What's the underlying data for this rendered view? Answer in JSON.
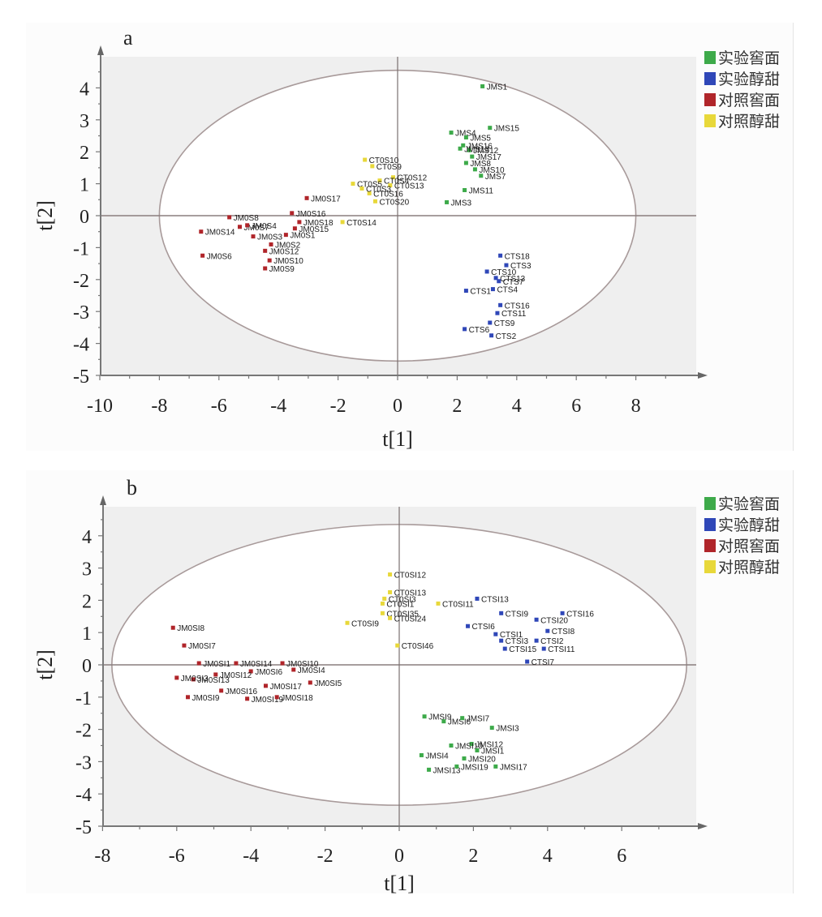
{
  "chart_data": [
    {
      "type": "scatter",
      "panel_label": "a",
      "xlabel": "t[1]",
      "ylabel": "t[2]",
      "xlim": [
        -10,
        10
      ],
      "ylim": [
        -5,
        5
      ],
      "xticks": [
        "-10",
        "-8",
        "-6",
        "-4",
        "-2",
        "0",
        "2",
        "4",
        "6",
        "8"
      ],
      "xtick_values": [
        -10,
        -8,
        -6,
        -4,
        -2,
        0,
        2,
        4,
        6,
        8
      ],
      "yticks": [
        "4",
        "3",
        "2",
        "1",
        "0",
        "-1",
        "-2",
        "-3",
        "-4",
        "-5"
      ],
      "ytick_values": [
        4,
        3,
        2,
        1,
        0,
        -1,
        -2,
        -3,
        -4,
        -5
      ],
      "grid": false,
      "ellipse": {
        "cx": 0,
        "cy": 0,
        "rx": 8.0,
        "ry": 4.55
      },
      "legend_position": "right",
      "legend": [
        {
          "label": "实验窖面",
          "color": "#3daa4a"
        },
        {
          "label": "实验醇甜",
          "color": "#2f47b8"
        },
        {
          "label": "对照窖面",
          "color": "#b0252a"
        },
        {
          "label": "对照醇甜",
          "color": "#e8d83a"
        }
      ],
      "series": [
        {
          "name": "实验窖面",
          "color": "#3daa4a",
          "points": [
            {
              "label": "JMS1",
              "x": 2.85,
              "y": 4.05
            },
            {
              "label": "JMS15",
              "x": 3.1,
              "y": 2.75
            },
            {
              "label": "JMS4",
              "x": 1.8,
              "y": 2.6
            },
            {
              "label": "JMS5",
              "x": 2.3,
              "y": 2.45
            },
            {
              "label": "JMS16",
              "x": 2.2,
              "y": 2.2
            },
            {
              "label": "JMS12",
              "x": 2.4,
              "y": 2.05
            },
            {
              "label": "JMS17",
              "x": 2.5,
              "y": 1.85
            },
            {
              "label": "JMS13",
              "x": 2.1,
              "y": 2.1
            },
            {
              "label": "JMS8",
              "x": 2.3,
              "y": 1.65
            },
            {
              "label": "JMS10",
              "x": 2.6,
              "y": 1.45
            },
            {
              "label": "JMS7",
              "x": 2.8,
              "y": 1.25
            },
            {
              "label": "JMS11",
              "x": 2.25,
              "y": 0.8
            },
            {
              "label": "JMS3",
              "x": 1.65,
              "y": 0.42
            }
          ]
        },
        {
          "name": "实验醇甜",
          "color": "#2f47b8",
          "points": [
            {
              "label": "CTS18",
              "x": 3.45,
              "y": -1.25
            },
            {
              "label": "CTS3",
              "x": 3.65,
              "y": -1.55
            },
            {
              "label": "CTS10",
              "x": 3.0,
              "y": -1.75
            },
            {
              "label": "CTS13",
              "x": 3.3,
              "y": -1.95
            },
            {
              "label": "CTS7",
              "x": 3.4,
              "y": -2.05
            },
            {
              "label": "CTS4",
              "x": 3.2,
              "y": -2.3
            },
            {
              "label": "CTS1",
              "x": 2.3,
              "y": -2.35
            },
            {
              "label": "CTS16",
              "x": 3.45,
              "y": -2.8
            },
            {
              "label": "CTS11",
              "x": 3.35,
              "y": -3.05
            },
            {
              "label": "CTS9",
              "x": 3.1,
              "y": -3.35
            },
            {
              "label": "CTS6",
              "x": 2.25,
              "y": -3.55
            },
            {
              "label": "CTS2",
              "x": 3.15,
              "y": -3.75
            }
          ]
        },
        {
          "name": "对照窖面",
          "color": "#b0252a",
          "points": [
            {
              "label": "JM0S17",
              "x": -3.05,
              "y": 0.55
            },
            {
              "label": "JM0S16",
              "x": -3.55,
              "y": 0.08
            },
            {
              "label": "JM0S8",
              "x": -5.65,
              "y": -0.05
            },
            {
              "label": "JM0S18",
              "x": -3.3,
              "y": -0.2
            },
            {
              "label": "JM0S15",
              "x": -3.45,
              "y": -0.4
            },
            {
              "label": "JM0S7",
              "x": -5.3,
              "y": -0.35
            },
            {
              "label": "JM0S4",
              "x": -5.05,
              "y": -0.3
            },
            {
              "label": "JM0S14",
              "x": -6.6,
              "y": -0.5
            },
            {
              "label": "JM0S1",
              "x": -3.75,
              "y": -0.6
            },
            {
              "label": "JM0S3",
              "x": -4.85,
              "y": -0.65
            },
            {
              "label": "JM0S2",
              "x": -4.25,
              "y": -0.9
            },
            {
              "label": "JM0S12",
              "x": -4.45,
              "y": -1.1
            },
            {
              "label": "JM0S10",
              "x": -4.3,
              "y": -1.4
            },
            {
              "label": "JM0S9",
              "x": -4.45,
              "y": -1.65
            },
            {
              "label": "JM0S6",
              "x": -6.55,
              "y": -1.25
            }
          ]
        },
        {
          "name": "对照醇甜",
          "color": "#e8d83a",
          "points": [
            {
              "label": "CT0S10",
              "x": -1.1,
              "y": 1.75
            },
            {
              "label": "CT0S9",
              "x": -0.85,
              "y": 1.55
            },
            {
              "label": "CT0S12",
              "x": -0.15,
              "y": 1.2
            },
            {
              "label": "CT0S4",
              "x": -0.6,
              "y": 1.1
            },
            {
              "label": "CT0S13",
              "x": -0.25,
              "y": 0.95
            },
            {
              "label": "CT0S5",
              "x": -1.5,
              "y": 1.0
            },
            {
              "label": "CT0S16",
              "x": -0.95,
              "y": 0.7
            },
            {
              "label": "CT0S3",
              "x": -1.2,
              "y": 0.85
            },
            {
              "label": "CT0S20",
              "x": -0.75,
              "y": 0.45
            },
            {
              "label": "CT0S14",
              "x": -1.85,
              "y": -0.2
            }
          ]
        }
      ]
    },
    {
      "type": "scatter",
      "panel_label": "b",
      "xlabel": "t[1]",
      "ylabel": "t[2]",
      "xlim": [
        -8,
        8
      ],
      "ylim": [
        -5,
        5
      ],
      "xticks": [
        "-8",
        "-6",
        "-4",
        "-2",
        "0",
        "2",
        "4",
        "6"
      ],
      "xtick_values": [
        -8,
        -6,
        -4,
        -2,
        0,
        2,
        4,
        6
      ],
      "yticks": [
        "4",
        "3",
        "2",
        "1",
        "0",
        "-1",
        "-2",
        "-3",
        "-4",
        "-5"
      ],
      "ytick_values": [
        4,
        3,
        2,
        1,
        0,
        -1,
        -2,
        -3,
        -4,
        -5
      ],
      "grid": false,
      "ellipse": {
        "cx": 0,
        "cy": 0,
        "rx": 7.75,
        "ry": 4.35
      },
      "legend_position": "right",
      "legend": [
        {
          "label": "实验窖面",
          "color": "#3daa4a"
        },
        {
          "label": "实验醇甜",
          "color": "#2f47b8"
        },
        {
          "label": "对照窖面",
          "color": "#b0252a"
        },
        {
          "label": "对照醇甜",
          "color": "#e8d83a"
        }
      ],
      "series": [
        {
          "name": "实验窖面",
          "color": "#3daa4a",
          "points": [
            {
              "label": "JMSI9",
              "x": 0.68,
              "y": -1.6
            },
            {
              "label": "JMSI6",
              "x": 1.2,
              "y": -1.75
            },
            {
              "label": "JMSI7",
              "x": 1.7,
              "y": -1.65
            },
            {
              "label": "JMSI3",
              "x": 2.5,
              "y": -1.95
            },
            {
              "label": "JMSI12",
              "x": 1.95,
              "y": -2.45
            },
            {
              "label": "JMSI10",
              "x": 1.4,
              "y": -2.5
            },
            {
              "label": "JMSI1",
              "x": 2.1,
              "y": -2.65
            },
            {
              "label": "JMSI4",
              "x": 0.6,
              "y": -2.8
            },
            {
              "label": "JMSI20",
              "x": 1.75,
              "y": -2.9
            },
            {
              "label": "JMSI13",
              "x": 0.8,
              "y": -3.25
            },
            {
              "label": "JMSI19",
              "x": 1.55,
              "y": -3.15
            },
            {
              "label": "JMSI17",
              "x": 2.6,
              "y": -3.15
            }
          ]
        },
        {
          "name": "实验醇甜",
          "color": "#2f47b8",
          "points": [
            {
              "label": "CTSI13",
              "x": 2.1,
              "y": 2.05
            },
            {
              "label": "CTSI16",
              "x": 4.4,
              "y": 1.6
            },
            {
              "label": "CTSI9",
              "x": 2.75,
              "y": 1.6
            },
            {
              "label": "CTSI20",
              "x": 3.7,
              "y": 1.4
            },
            {
              "label": "CTSI6",
              "x": 1.85,
              "y": 1.2
            },
            {
              "label": "CTSI8",
              "x": 4.0,
              "y": 1.05
            },
            {
              "label": "CTSI1",
              "x": 2.6,
              "y": 0.95
            },
            {
              "label": "CTSI2",
              "x": 3.7,
              "y": 0.75
            },
            {
              "label": "CTSI3",
              "x": 2.75,
              "y": 0.75
            },
            {
              "label": "CTSI15",
              "x": 2.85,
              "y": 0.5
            },
            {
              "label": "CTSI11",
              "x": 3.9,
              "y": 0.5
            },
            {
              "label": "CTSI7",
              "x": 3.45,
              "y": 0.1
            }
          ]
        },
        {
          "name": "对照窖面",
          "color": "#b0252a",
          "points": [
            {
              "label": "JM0SI8",
              "x": -6.1,
              "y": 1.15
            },
            {
              "label": "JM0SI7",
              "x": -5.8,
              "y": 0.6
            },
            {
              "label": "JM0SI1",
              "x": -5.4,
              "y": 0.05
            },
            {
              "label": "JM0SI14",
              "x": -4.4,
              "y": 0.05
            },
            {
              "label": "JM0SI10",
              "x": -3.15,
              "y": 0.05
            },
            {
              "label": "JM0SI4",
              "x": -2.85,
              "y": -0.15
            },
            {
              "label": "JM0SI6",
              "x": -4.0,
              "y": -0.2
            },
            {
              "label": "JM0SI12",
              "x": -4.95,
              "y": -0.3
            },
            {
              "label": "JM0SI13",
              "x": -5.55,
              "y": -0.45
            },
            {
              "label": "JM0SI3",
              "x": -6.0,
              "y": -0.4
            },
            {
              "label": "JM0SI17",
              "x": -3.6,
              "y": -0.65
            },
            {
              "label": "JM0SI5",
              "x": -2.4,
              "y": -0.55
            },
            {
              "label": "JM0SI16",
              "x": -4.8,
              "y": -0.8
            },
            {
              "label": "JM0SI9",
              "x": -5.7,
              "y": -1.0
            },
            {
              "label": "JM0SI19",
              "x": -4.1,
              "y": -1.05
            },
            {
              "label": "JM0SI18",
              "x": -3.3,
              "y": -1.0
            }
          ]
        },
        {
          "name": "对照醇甜",
          "color": "#e8d83a",
          "points": [
            {
              "label": "CT0SI12",
              "x": -0.25,
              "y": 2.8
            },
            {
              "label": "CT0SI13",
              "x": -0.25,
              "y": 2.25
            },
            {
              "label": "CT0SI3",
              "x": -0.4,
              "y": 2.05
            },
            {
              "label": "CT0SI1",
              "x": -0.45,
              "y": 1.9
            },
            {
              "label": "CT0SI11",
              "x": 1.05,
              "y": 1.9
            },
            {
              "label": "CT0SI35",
              "x": -0.45,
              "y": 1.6
            },
            {
              "label": "CT0SI24",
              "x": -0.25,
              "y": 1.45
            },
            {
              "label": "CT0SI9",
              "x": -1.4,
              "y": 1.3
            },
            {
              "label": "CT0SI46",
              "x": -0.05,
              "y": 0.6
            }
          ]
        }
      ]
    }
  ]
}
